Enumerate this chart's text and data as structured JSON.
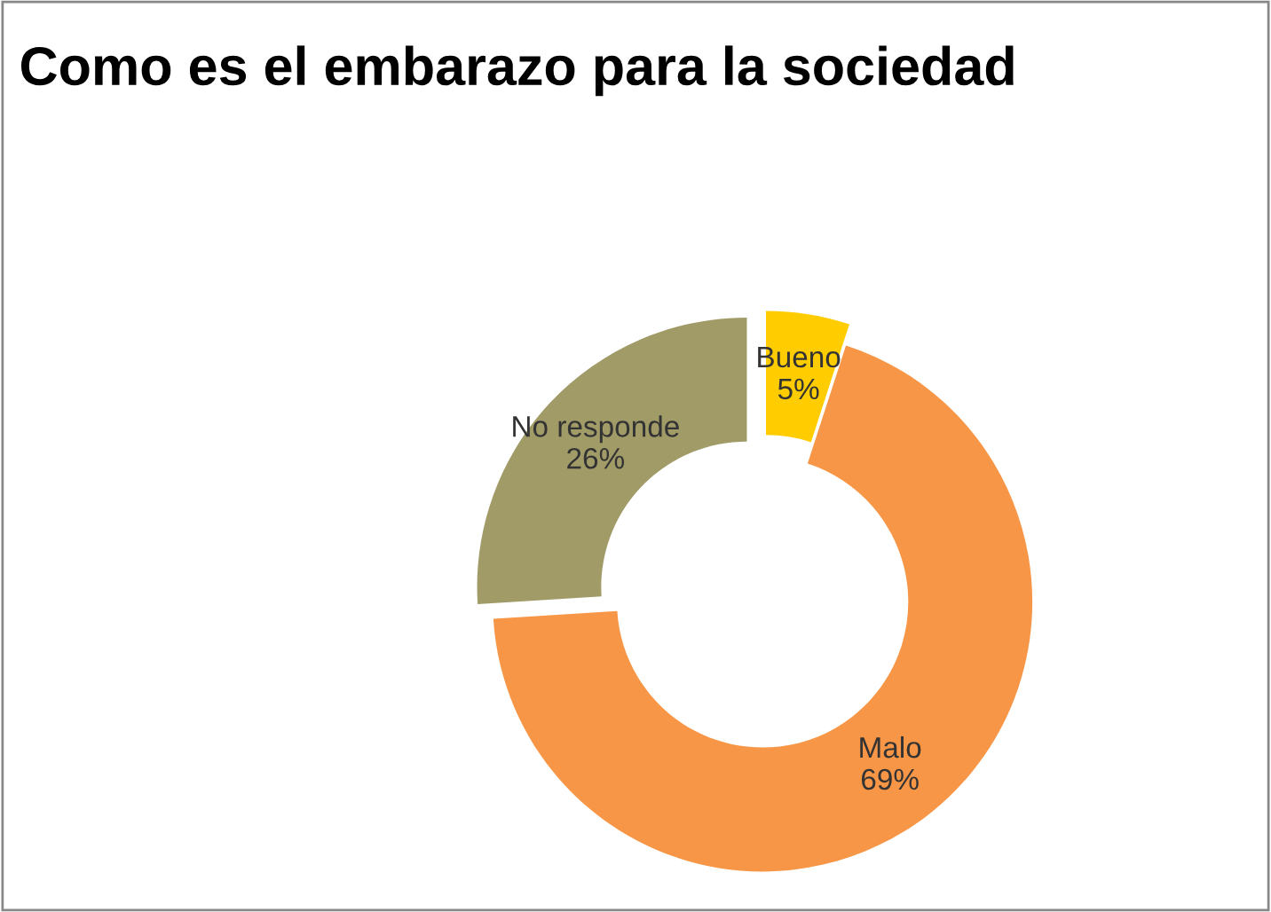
{
  "chart_data": {
    "type": "donut",
    "title": "Como es el embarazo para la sociedad",
    "categories": [
      "Bueno",
      "Malo",
      "No responde"
    ],
    "values": [
      5,
      69,
      26
    ],
    "value_labels": [
      "5%",
      "69%",
      "26%"
    ],
    "colors": [
      "#ffcc00",
      "#f79646",
      "#a19b68"
    ],
    "legend": false
  }
}
